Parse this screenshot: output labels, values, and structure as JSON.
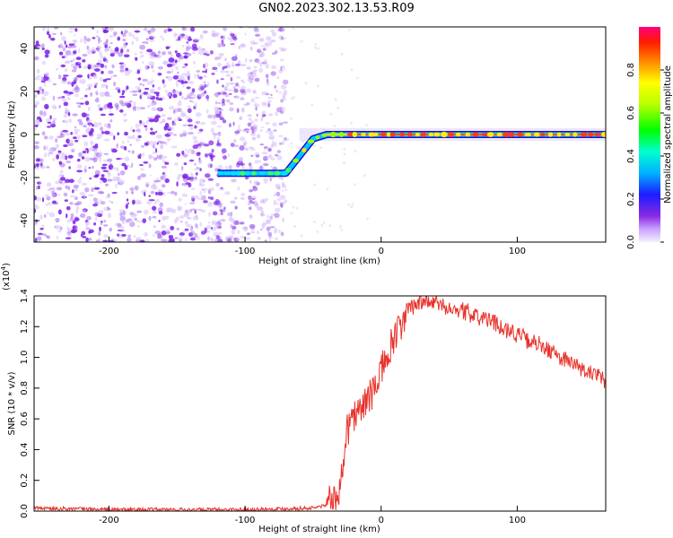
{
  "title": "GN02.2023.302.13.53.R09",
  "chart_data": [
    {
      "type": "heatmap",
      "xlabel": "Height of straight line (km)",
      "ylabel": "Frequency (Hz)",
      "xlim": [
        -255,
        165
      ],
      "ylim": [
        -50,
        50
      ],
      "xticks": [
        -200,
        -100,
        0,
        100
      ],
      "yticks": [
        -40,
        -20,
        0,
        20,
        40
      ],
      "colorbar": {
        "label": "Normalized spectral amplitude",
        "range": [
          0,
          1
        ],
        "ticks": [
          0.0,
          0.2,
          0.4,
          0.6,
          0.8
        ]
      },
      "ridge": [
        {
          "x": -120,
          "y": -18
        },
        {
          "x": -70,
          "y": -18
        },
        {
          "x": -60,
          "y": -10
        },
        {
          "x": -50,
          "y": -2
        },
        {
          "x": -40,
          "y": 0
        },
        {
          "x": 0,
          "y": 0
        },
        {
          "x": 165,
          "y": 0
        }
      ]
    },
    {
      "type": "line",
      "xlabel": "Height of straight line (km)",
      "ylabel": "SNR (10 * v/v)",
      "y_multiplier": "(x10",
      "y_multiplier_exp": "4",
      "y_multiplier_close": ")",
      "xlim": [
        -255,
        165
      ],
      "ylim": [
        0,
        1.4
      ],
      "xticks": [
        -200,
        -100,
        0,
        100
      ],
      "yticks": [
        0.0,
        0.2,
        0.4,
        0.6,
        0.8,
        1.0,
        1.2,
        1.4
      ],
      "series": [
        {
          "color": "#e8322b",
          "x": [
            -255,
            -200,
            -150,
            -100,
            -50,
            -40,
            -33,
            -30,
            -28,
            -25,
            -20,
            -10,
            0,
            10,
            20,
            30,
            40,
            60,
            80,
            100,
            120,
            140,
            165
          ],
          "y": [
            0.02,
            0.01,
            0.01,
            0.01,
            0.02,
            0.04,
            0.05,
            0.15,
            0.35,
            0.55,
            0.62,
            0.72,
            0.9,
            1.12,
            1.3,
            1.37,
            1.35,
            1.3,
            1.24,
            1.15,
            1.06,
            0.96,
            0.84
          ]
        }
      ]
    }
  ]
}
